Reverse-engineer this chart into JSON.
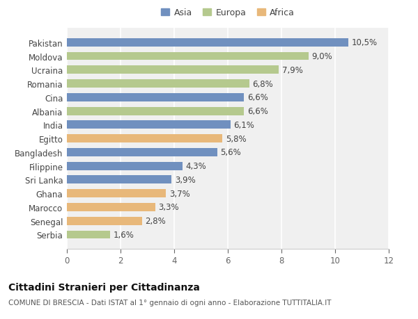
{
  "countries": [
    "Pakistan",
    "Moldova",
    "Ucraina",
    "Romania",
    "Cina",
    "Albania",
    "India",
    "Egitto",
    "Bangladesh",
    "Filippine",
    "Sri Lanka",
    "Ghana",
    "Marocco",
    "Senegal",
    "Serbia"
  ],
  "values": [
    10.5,
    9.0,
    7.9,
    6.8,
    6.6,
    6.6,
    6.1,
    5.8,
    5.6,
    4.3,
    3.9,
    3.7,
    3.3,
    2.8,
    1.6
  ],
  "continents": [
    "Asia",
    "Europa",
    "Europa",
    "Europa",
    "Asia",
    "Europa",
    "Asia",
    "Africa",
    "Asia",
    "Asia",
    "Asia",
    "Africa",
    "Africa",
    "Africa",
    "Europa"
  ],
  "colors": {
    "Asia": "#7090bf",
    "Europa": "#b5c98e",
    "Africa": "#e8b87a"
  },
  "legend_labels": [
    "Asia",
    "Europa",
    "Africa"
  ],
  "xlim": [
    0,
    12
  ],
  "xticks": [
    0,
    2,
    4,
    6,
    8,
    10,
    12
  ],
  "title_bold": "Cittadini Stranieri per Cittadinanza",
  "subtitle": "COMUNE DI BRESCIA - Dati ISTAT al 1° gennaio di ogni anno - Elaborazione TUTTITALIA.IT",
  "bg_color": "#ffffff",
  "plot_bg_color": "#f0f0f0",
  "bar_height": 0.6,
  "grid_color": "#ffffff",
  "label_fontsize": 8.5,
  "tick_fontsize": 8.5,
  "title_fontsize": 10,
  "subtitle_fontsize": 7.5,
  "legend_fontsize": 9
}
